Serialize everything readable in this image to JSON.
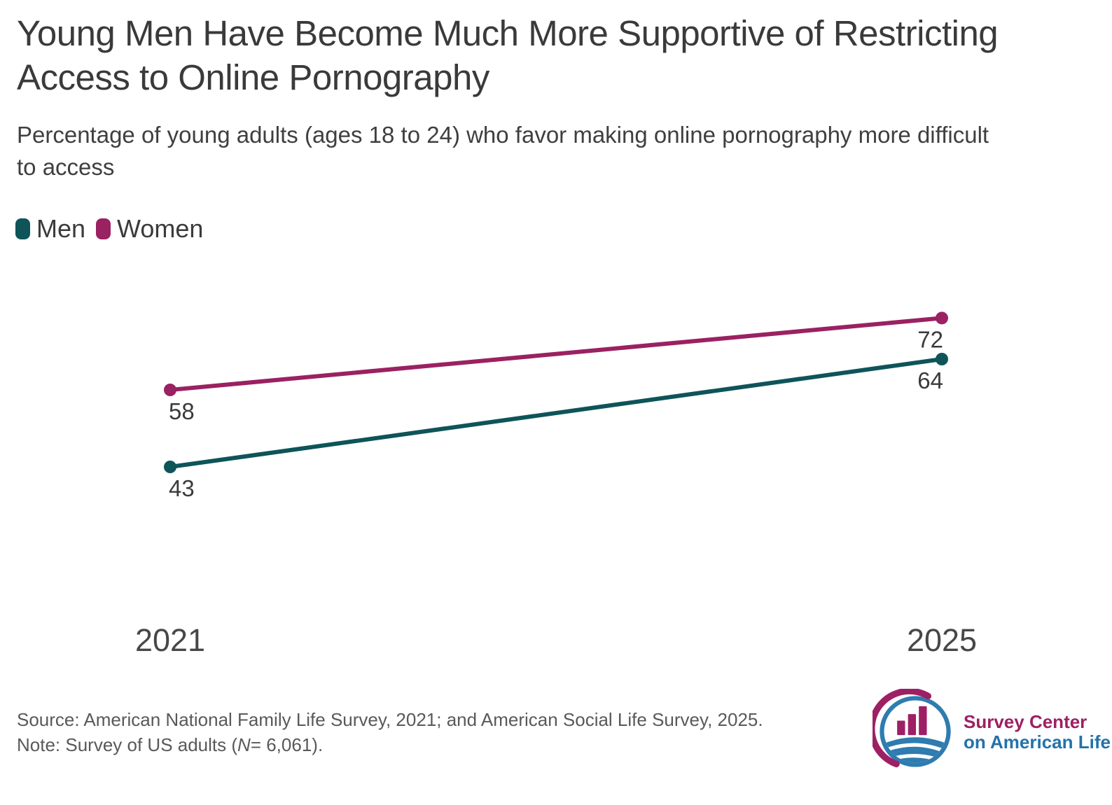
{
  "header": {
    "title_line1": "Young Men Have Become Much More Supportive of Restricting",
    "title_line2": "Access to Online Pornography",
    "subtitle_line1": "Percentage of young adults (ages 18 to 24) who favor making online pornography more difficult",
    "subtitle_line2": "to access"
  },
  "chart_data": {
    "type": "line",
    "variant": "slope-chart",
    "categories": [
      "2021",
      "2025"
    ],
    "series": [
      {
        "name": "Men",
        "color": "#0e5459",
        "values": [
          43,
          64
        ]
      },
      {
        "name": "Women",
        "color": "#9a2162",
        "values": [
          58,
          72
        ]
      }
    ],
    "title": "Young Men Have Become Much More Supportive of Restricting Access to Online Pornography",
    "subtitle": "Percentage of young adults (ages 18 to 24) who favor making online pornography more difficult to access",
    "xlabel": "",
    "ylabel": "",
    "ylim": [
      0,
      100
    ],
    "grid": false,
    "legend_position": "top-left",
    "value_labels": true
  },
  "footer": {
    "source": "Source: American National Family Life Survey, 2021; and American Social Life Survey, 2025.",
    "note_prefix": "Note: Survey of US adults (",
    "note_n": "N",
    "note_suffix": "= 6,061)."
  },
  "logo": {
    "line1": "Survey Center",
    "line2": "on American Life",
    "magenta": "#9e2064",
    "blue": "#2472aa"
  },
  "colors": {
    "men_teal": "#0e5459",
    "women_magenta": "#9a2162",
    "text_dark": "#3a3a3a",
    "text_gray": "#595959"
  }
}
